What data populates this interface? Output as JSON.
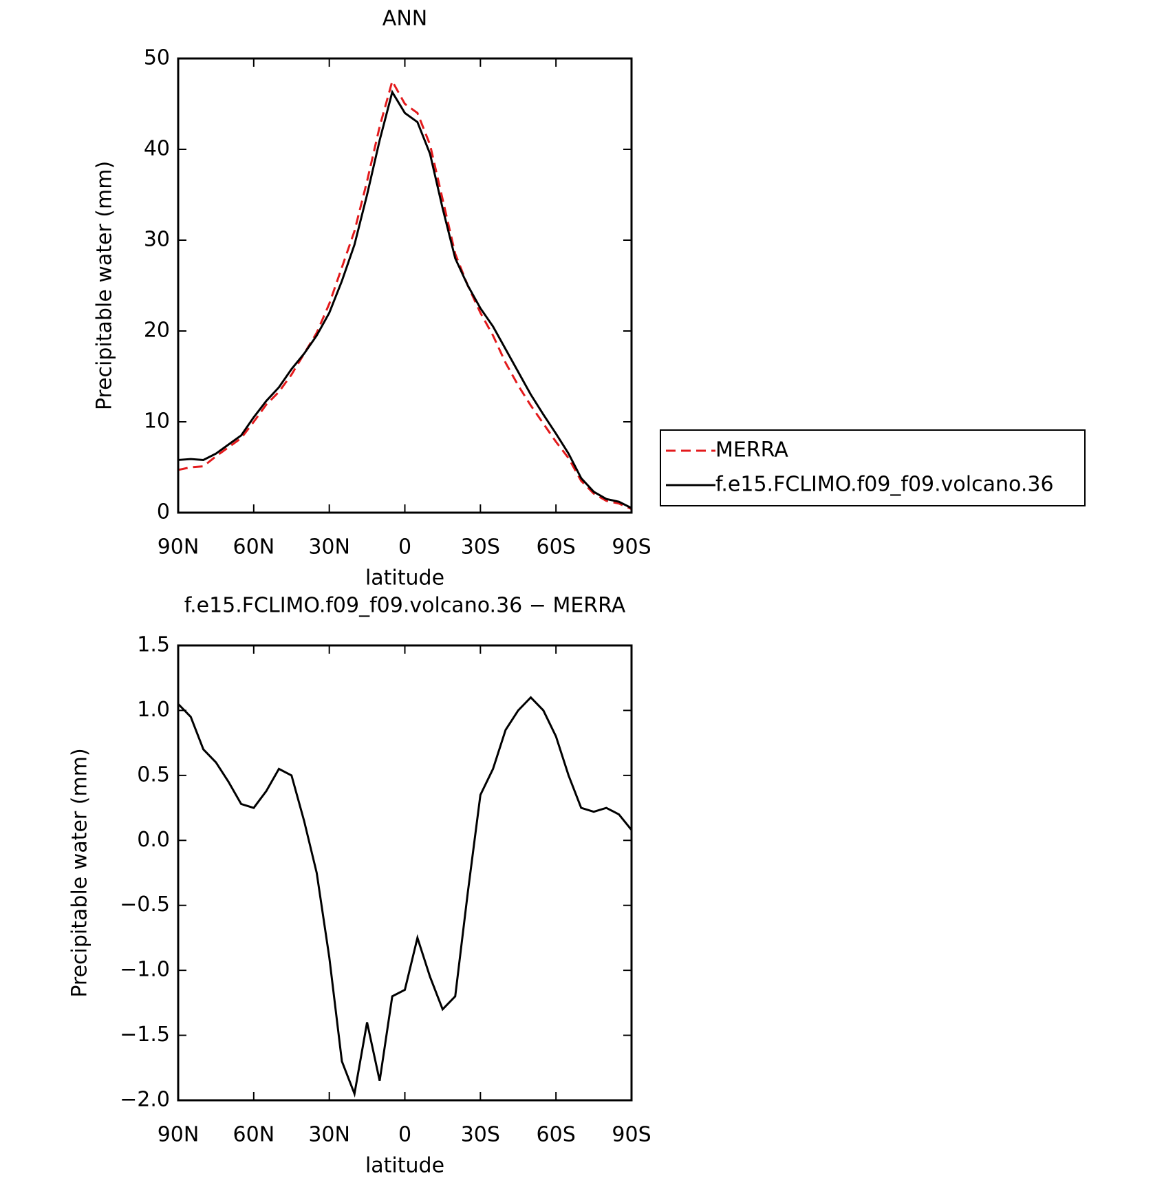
{
  "chart_data": [
    {
      "type": "line",
      "title": "ANN",
      "xlabel": "latitude",
      "ylabel": "Precipitable water (mm)",
      "x": [
        90,
        85,
        80,
        75,
        70,
        65,
        60,
        55,
        50,
        45,
        40,
        35,
        30,
        25,
        20,
        15,
        10,
        5,
        0,
        -5,
        -10,
        -15,
        -20,
        -25,
        -30,
        -35,
        -40,
        -45,
        -50,
        -55,
        -60,
        -65,
        -70,
        -75,
        -80,
        -85,
        -90
      ],
      "series": [
        {
          "name": "MERRA",
          "color": "#e31a1c",
          "line_style": "dashed",
          "values": [
            4.7,
            5.0,
            5.1,
            6.2,
            7.2,
            8.2,
            10.0,
            11.9,
            13.3,
            15.2,
            17.5,
            19.8,
            23,
            27,
            31,
            36.5,
            42.5,
            47.5,
            45,
            44,
            40.5,
            34.5,
            28.5,
            25,
            22,
            19.5,
            16.5,
            14,
            11.8,
            9.8,
            7.8,
            6.0,
            3.5,
            2.1,
            1.3,
            1.0,
            0.4
          ]
        },
        {
          "name": "f.e15.FCLIMO.f09_f09.volcano.36",
          "color": "#000000",
          "line_style": "solid",
          "values": [
            5.8,
            5.9,
            5.8,
            6.5,
            7.5,
            8.5,
            10.5,
            12.3,
            13.8,
            15.8,
            17.5,
            19.5,
            22,
            25.5,
            29.5,
            35,
            41,
            46.3,
            44,
            43,
            39.5,
            33.5,
            28,
            25,
            22.5,
            20.5,
            18,
            15.5,
            13,
            10.8,
            8.7,
            6.5,
            3.8,
            2.3,
            1.5,
            1.2,
            0.5
          ]
        }
      ],
      "xlim": [
        90,
        -90
      ],
      "xticks": [
        {
          "value": 90,
          "label": "90N"
        },
        {
          "value": 60,
          "label": "60N"
        },
        {
          "value": 30,
          "label": "30N"
        },
        0,
        {
          "value": -30,
          "label": "30S"
        },
        {
          "value": -60,
          "label": "60S"
        },
        {
          "value": -90,
          "label": "90S"
        }
      ],
      "ylim": [
        0,
        50
      ],
      "yticks": [
        0,
        10,
        20,
        30,
        40,
        50
      ],
      "legend": "right"
    },
    {
      "type": "line",
      "title": "f.e15.FCLIMO.f09_f09.volcano.36 − MERRA",
      "xlabel": "latitude",
      "ylabel": "Precipitable water (mm)",
      "x": [
        90,
        85,
        80,
        75,
        70,
        65,
        60,
        55,
        50,
        45,
        40,
        35,
        30,
        25,
        20,
        15,
        10,
        5,
        0,
        -5,
        -10,
        -15,
        -20,
        -25,
        -30,
        -35,
        -40,
        -45,
        -50,
        -55,
        -60,
        -65,
        -70,
        -75,
        -80,
        -85,
        -90
      ],
      "series": [
        {
          "color": "#000000",
          "line_style": "solid",
          "values": [
            1.05,
            0.95,
            0.7,
            0.6,
            0.45,
            0.28,
            0.25,
            0.38,
            0.55,
            0.5,
            0.15,
            -0.25,
            -0.9,
            -1.7,
            -1.95,
            -1.4,
            -1.85,
            -1.2,
            -1.15,
            -0.75,
            -1.05,
            -1.3,
            -1.2,
            -0.4,
            0.35,
            0.55,
            0.85,
            1.0,
            1.1,
            1.0,
            0.8,
            0.5,
            0.25,
            0.22,
            0.25,
            0.2,
            0.08
          ]
        }
      ],
      "xlim": [
        90,
        -90
      ],
      "xticks": [
        {
          "value": 90,
          "label": "90N"
        },
        {
          "value": 60,
          "label": "60N"
        },
        {
          "value": 30,
          "label": "30N"
        },
        0,
        {
          "value": -30,
          "label": "30S"
        },
        {
          "value": -60,
          "label": "60S"
        },
        {
          "value": -90,
          "label": "90S"
        }
      ],
      "ylim": [
        -2,
        1.5
      ],
      "yticks": [
        {
          "value": -2,
          "label": "−2.0"
        },
        {
          "value": -1.5,
          "label": "−1.5"
        },
        {
          "value": -1,
          "label": "−1.0"
        },
        {
          "value": -0.5,
          "label": "−0.5"
        },
        {
          "value": 0,
          "label": "0.0"
        },
        0.5,
        {
          "value": 1,
          "label": "1.0"
        },
        1.5
      ]
    }
  ]
}
